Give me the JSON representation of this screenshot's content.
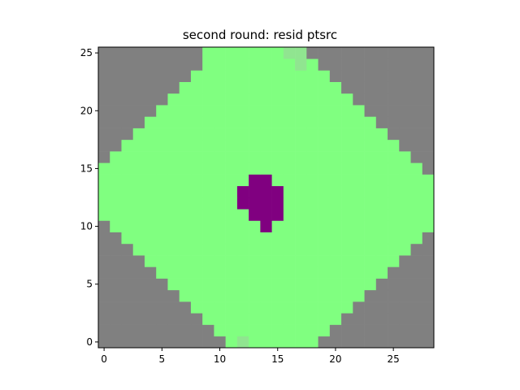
{
  "chart_data": {
    "type": "heatmap",
    "title": "second round: resid ptsrc",
    "xlabel": "",
    "ylabel": "",
    "xlim": [
      -0.5,
      28.5
    ],
    "ylim": [
      -0.5,
      25.5
    ],
    "xticks": [
      0,
      5,
      10,
      15,
      20,
      25
    ],
    "yticks": [
      0,
      5,
      10,
      15,
      20,
      25
    ],
    "ncols": 29,
    "nrows": 26,
    "origin": "lower",
    "colors": {
      "masked": "#808080",
      "field": "#80ff80",
      "partial": "#90e590",
      "source": "#800080"
    },
    "grey_left_columns_by_row": [
      11,
      10,
      9,
      8,
      7,
      6,
      5,
      4,
      3,
      2,
      1,
      0,
      0,
      0,
      0,
      0,
      1,
      2,
      3,
      4,
      5,
      6,
      7,
      8,
      9,
      9
    ],
    "grey_right_columns_by_row": [
      10,
      9,
      8,
      7,
      6,
      5,
      4,
      3,
      2,
      1,
      0,
      0,
      0,
      0,
      0,
      1,
      2,
      3,
      4,
      5,
      6,
      7,
      8,
      9,
      10,
      11
    ],
    "partial_cells": [
      [
        12,
        0
      ],
      [
        16,
        25
      ],
      [
        17,
        25
      ],
      [
        17,
        24
      ]
    ],
    "source_cells": [
      [
        14,
        10
      ],
      [
        13,
        11
      ],
      [
        14,
        11
      ],
      [
        15,
        11
      ],
      [
        12,
        12
      ],
      [
        13,
        12
      ],
      [
        14,
        12
      ],
      [
        15,
        12
      ],
      [
        12,
        13
      ],
      [
        13,
        13
      ],
      [
        14,
        13
      ],
      [
        15,
        13
      ],
      [
        13,
        14
      ],
      [
        14,
        14
      ]
    ]
  }
}
